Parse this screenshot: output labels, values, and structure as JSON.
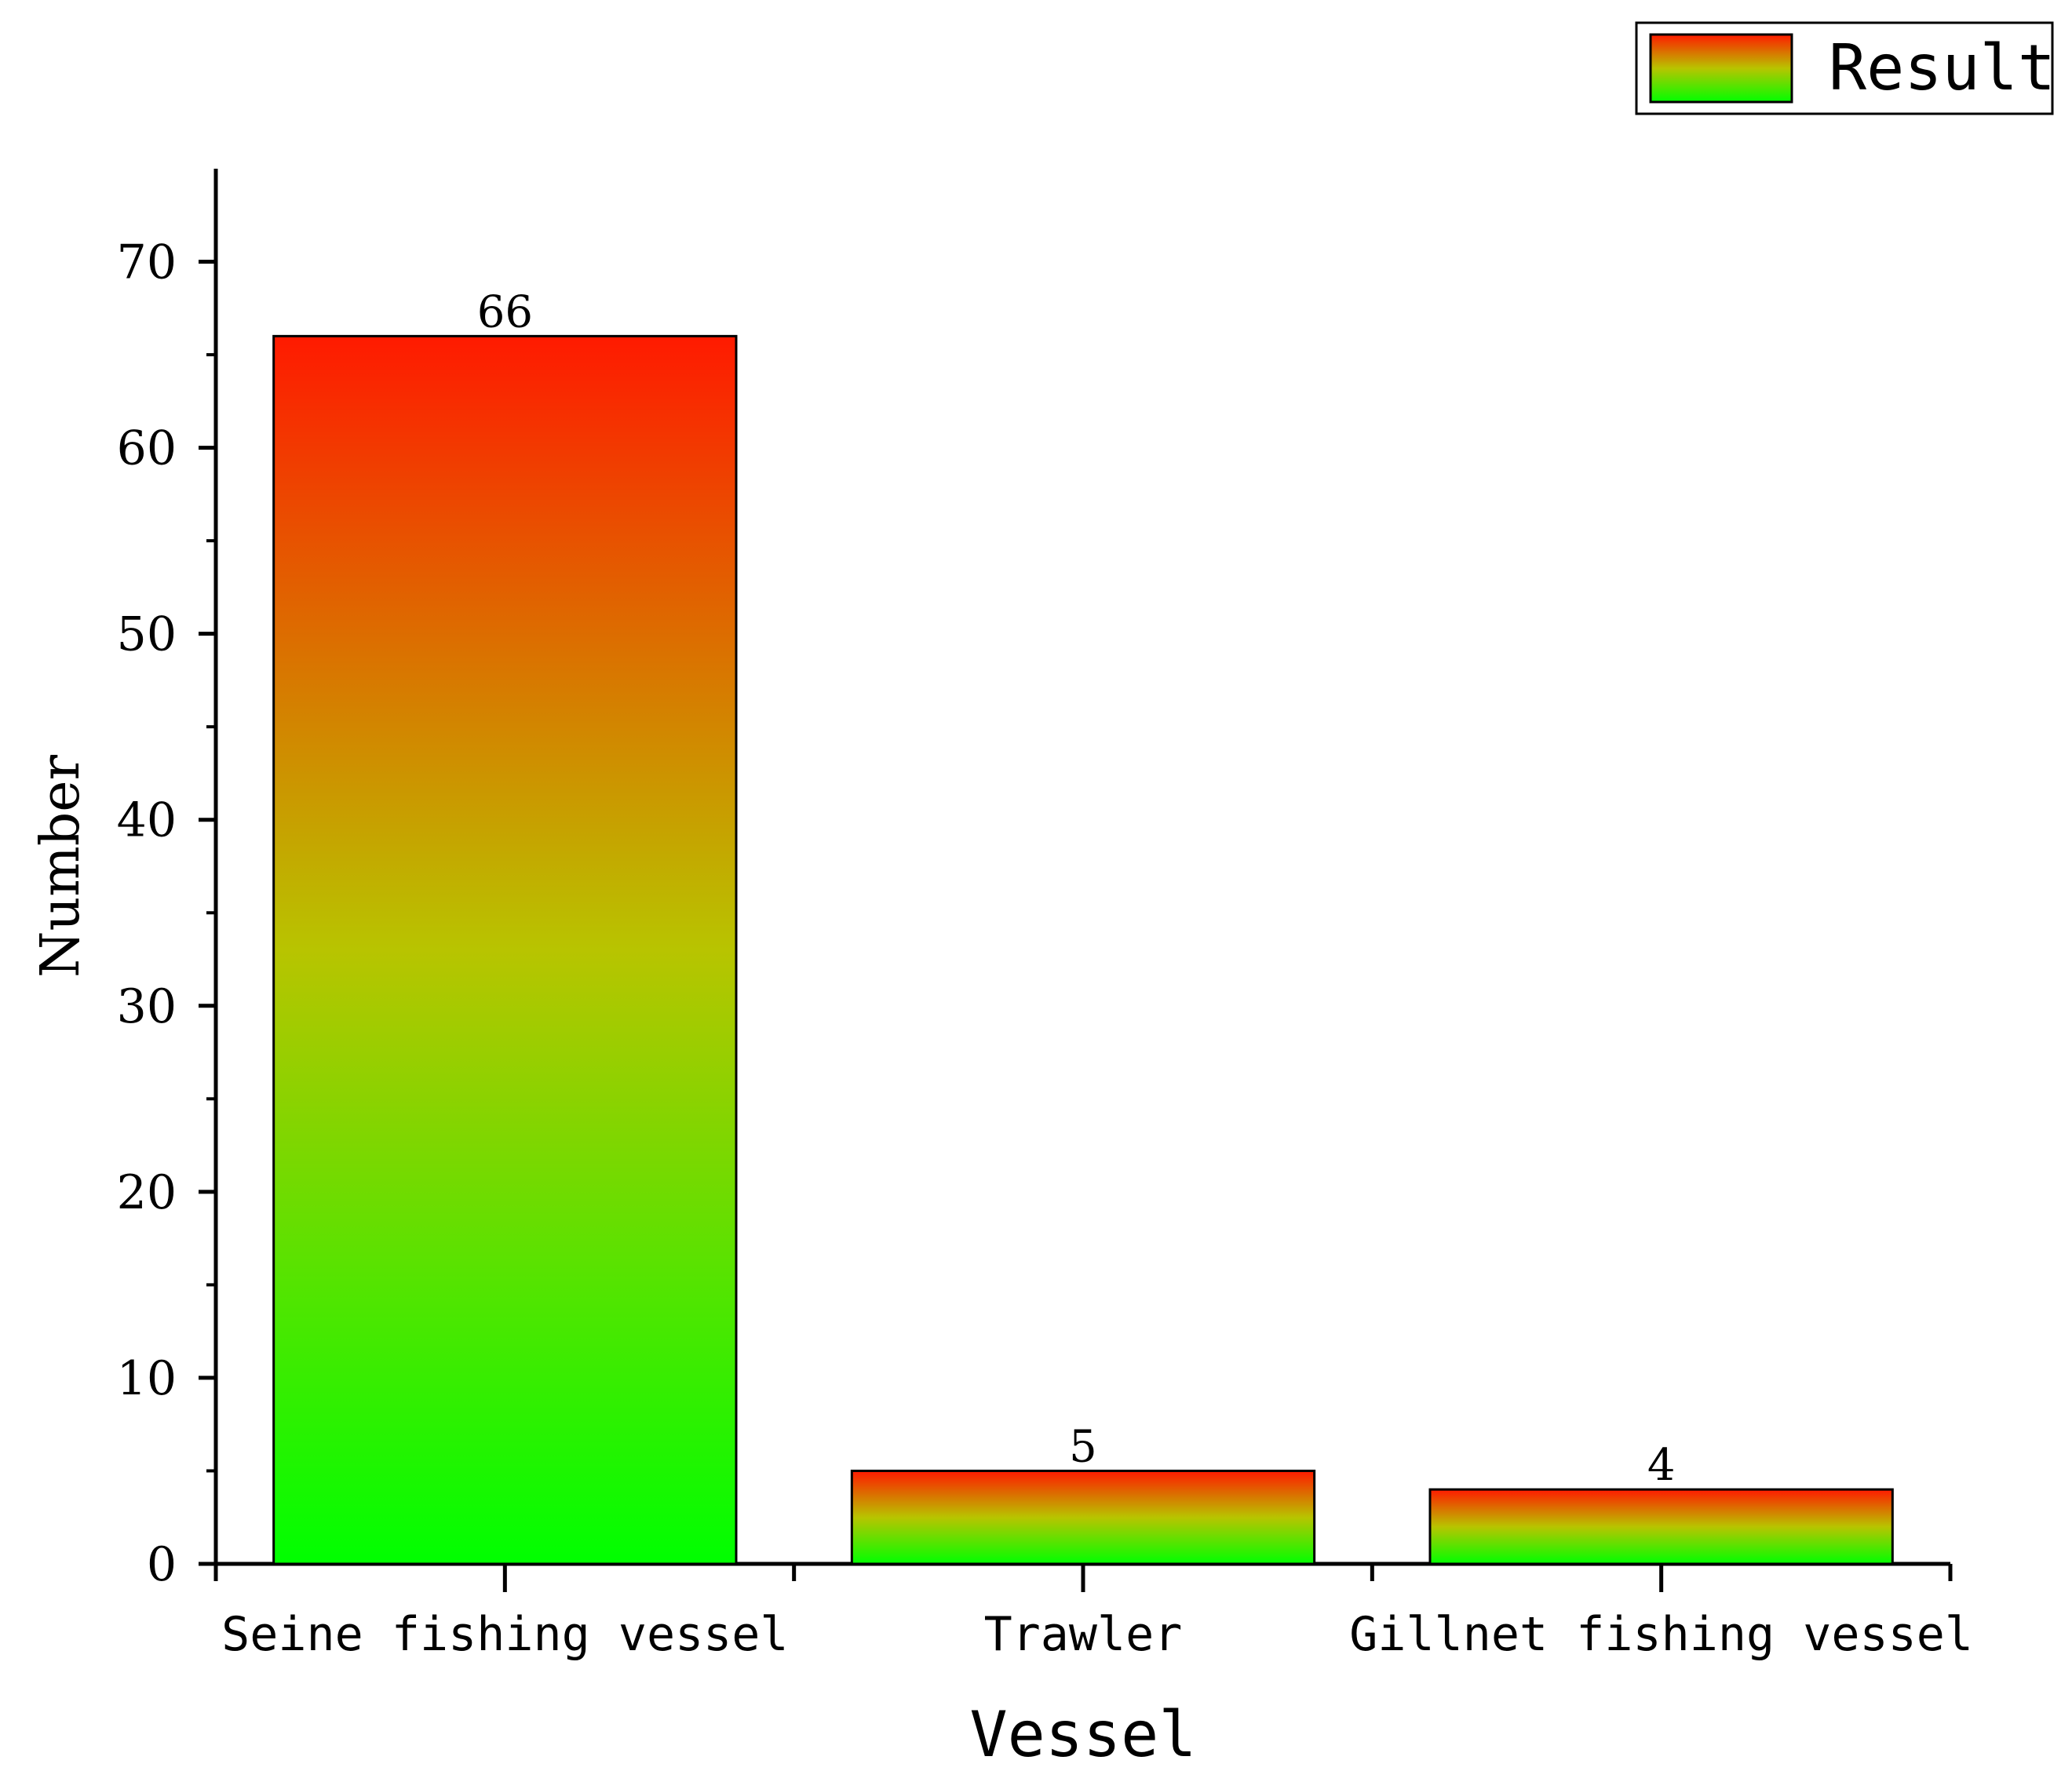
{
  "chart_data": {
    "type": "bar",
    "categories": [
      "Seine fishing vessel",
      "Trawler",
      "Gillnet fishing vessel"
    ],
    "series": [
      {
        "name": "Result",
        "values": [
          66,
          5,
          4
        ]
      }
    ],
    "xlabel": "Vessel",
    "ylabel": "Number",
    "ylim": [
      0,
      75
    ],
    "yticks": [
      0,
      10,
      20,
      30,
      40,
      50,
      60,
      70
    ],
    "grid": false,
    "legend_position": "top-right",
    "data_labels": [
      "66",
      "5",
      "4"
    ],
    "colors": {
      "bar_top": "#ff1a00",
      "bar_mid": "#b8c400",
      "bar_bottom": "#00ff00"
    }
  }
}
